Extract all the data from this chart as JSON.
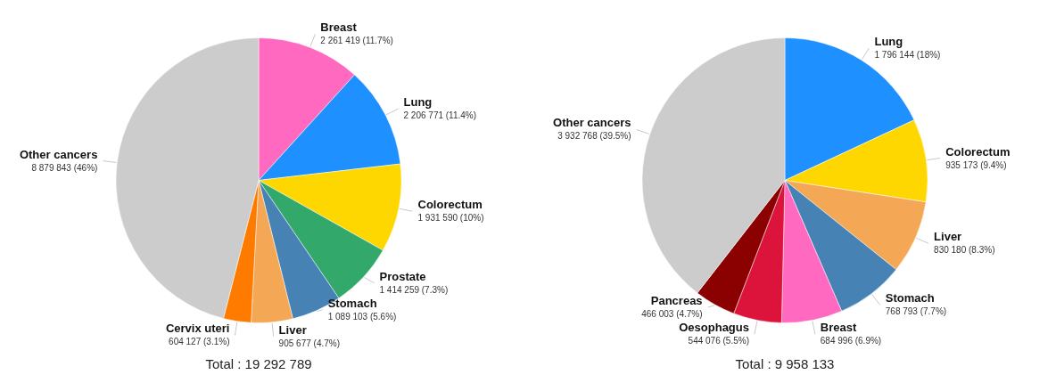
{
  "chart_data": [
    {
      "type": "pie",
      "categories": [
        "Breast",
        "Lung",
        "Colorectum",
        "Prostate",
        "Stomach",
        "Liver",
        "Cervix uteri",
        "Other cancers"
      ],
      "values": [
        2261419,
        2206771,
        1931590,
        1414259,
        1089103,
        905677,
        604127,
        8879843
      ],
      "colors": [
        "#ff69c0",
        "#1e90ff",
        "#ffd700",
        "#33a86b",
        "#4682b4",
        "#f4a755",
        "#ff7b00",
        "#cccccc"
      ],
      "value_labels": [
        "2 261 419 (11.7%)",
        "2 206 771 (11.4%)",
        "1 931 590 (10%)",
        "1 414 259 (7.3%)",
        "1 089 103 (5.6%)",
        "905 677 (4.7%)",
        "604 127 (3.1%)",
        "8 879 843 (46%)"
      ],
      "annotations": [
        "Total : 19 292 789"
      ],
      "legend": false
    },
    {
      "type": "pie",
      "categories": [
        "Lung",
        "Colorectum",
        "Liver",
        "Stomach",
        "Breast",
        "Oesophagus",
        "Pancreas",
        "Other cancers"
      ],
      "values": [
        1796144,
        935173,
        830180,
        768793,
        684996,
        544076,
        466003,
        3932768
      ],
      "colors": [
        "#1e90ff",
        "#ffd700",
        "#f4a755",
        "#4682b4",
        "#ff69c0",
        "#dc143c",
        "#8b0000",
        "#cccccc"
      ],
      "value_labels": [
        "1 796 144 (18%)",
        "935 173 (9.4%)",
        "830 180 (8.3%)",
        "768 793 (7.7%)",
        "684 996 (6.9%)",
        "544 076 (5.5%)",
        "466 003 (4.7%)",
        "3 932 768 (39.5%)"
      ],
      "annotations": [
        "Total : 9 958 133"
      ],
      "legend": false
    }
  ]
}
